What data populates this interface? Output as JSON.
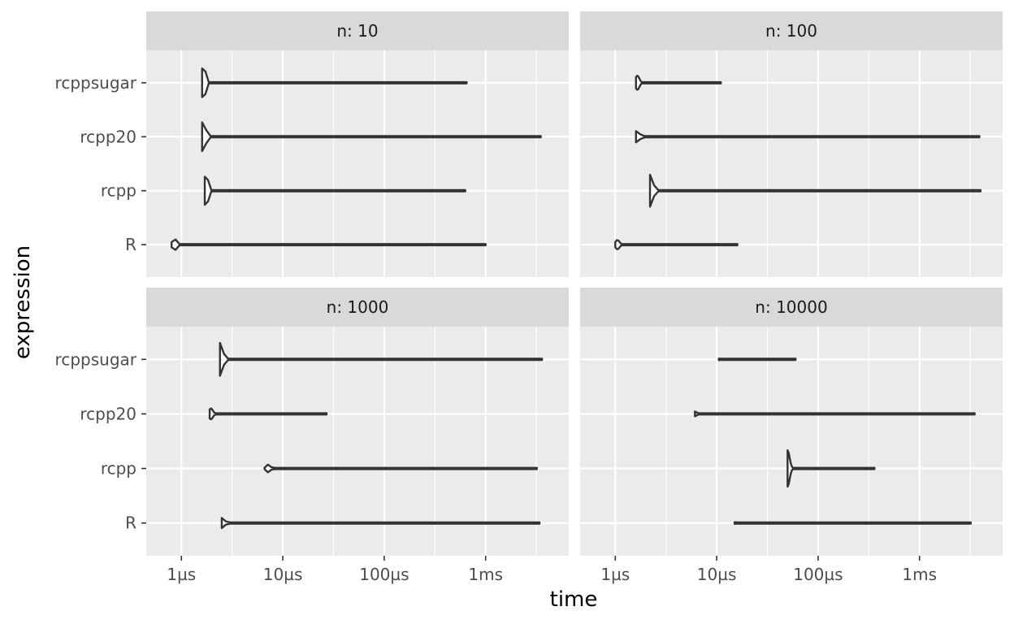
{
  "chart_data": {
    "type": "violin",
    "xlabel": "time",
    "ylabel": "expression",
    "x_scale": "log10",
    "xlim_seconds": [
      4.5e-07,
      0.0066
    ],
    "x_breaks": [
      1e-06,
      1e-05,
      0.0001,
      0.001
    ],
    "x_tick_labels": [
      "1µs",
      "10µs",
      "100µs",
      "1ms"
    ],
    "categories": [
      "R",
      "rcpp",
      "rcpp20",
      "rcppsugar"
    ],
    "grid": true,
    "facets": [
      {
        "strip": "n: 10",
        "series": [
          {
            "name": "rcppsugar",
            "min": 1.6e-06,
            "mode": 1.65e-06,
            "max": 0.00065,
            "width": 0.46
          },
          {
            "name": "rcpp20",
            "min": 1.6e-06,
            "mode": 1.65e-06,
            "max": 0.0035,
            "width": 0.46
          },
          {
            "name": "rcpp",
            "min": 1.7e-06,
            "mode": 1.75e-06,
            "max": 0.00063,
            "width": 0.44
          },
          {
            "name": "R",
            "min": 8e-07,
            "mode": 8.5e-07,
            "max": 0.001,
            "width": 0.16
          }
        ]
      },
      {
        "strip": "n: 100",
        "series": [
          {
            "name": "rcppsugar",
            "min": 1.6e-06,
            "mode": 1.65e-06,
            "max": 1.1e-05,
            "width": 0.18
          },
          {
            "name": "rcpp20",
            "min": 1.6e-06,
            "mode": 1.65e-06,
            "max": 0.0039,
            "width": 0.18
          },
          {
            "name": "rcpp",
            "min": 2.2e-06,
            "mode": 2.25e-06,
            "max": 0.004,
            "width": 0.46
          },
          {
            "name": "R",
            "min": 1e-06,
            "mode": 1.05e-06,
            "max": 1.6e-05,
            "width": 0.12
          }
        ]
      },
      {
        "strip": "n: 1000",
        "series": [
          {
            "name": "rcppsugar",
            "min": 2.4e-06,
            "mode": 2.45e-06,
            "max": 0.0036,
            "width": 0.46
          },
          {
            "name": "rcpp20",
            "min": 1.9e-06,
            "mode": 1.95e-06,
            "max": 2.7e-05,
            "width": 0.14
          },
          {
            "name": "rcpp",
            "min": 6.6e-06,
            "mode": 7.2e-06,
            "max": 0.0032,
            "width": 0.1
          },
          {
            "name": "R",
            "min": 2.5e-06,
            "mode": 2.55e-06,
            "max": 0.0034,
            "width": 0.14
          }
        ]
      },
      {
        "strip": "n: 10000",
        "series": [
          {
            "name": "rcppsugar",
            "min": 1.05e-05,
            "mode": 1.05e-05,
            "max": 6e-05,
            "width": 0.02
          },
          {
            "name": "rcpp20",
            "min": 6.1e-06,
            "mode": 6.1e-06,
            "max": 0.0035,
            "width": 0.06
          },
          {
            "name": "rcpp",
            "min": 5e-05,
            "mode": 5e-05,
            "max": 0.00036,
            "width": 0.46
          },
          {
            "name": "R",
            "min": 1.5e-05,
            "mode": 1.5e-05,
            "max": 0.0032,
            "width": 0.02
          }
        ]
      }
    ]
  },
  "colors": {
    "panel_bg": "#ebebeb",
    "strip_bg": "#d9d9d9",
    "grid": "#ffffff",
    "violin_stroke": "#333333",
    "violin_fill": "#ffffff"
  }
}
